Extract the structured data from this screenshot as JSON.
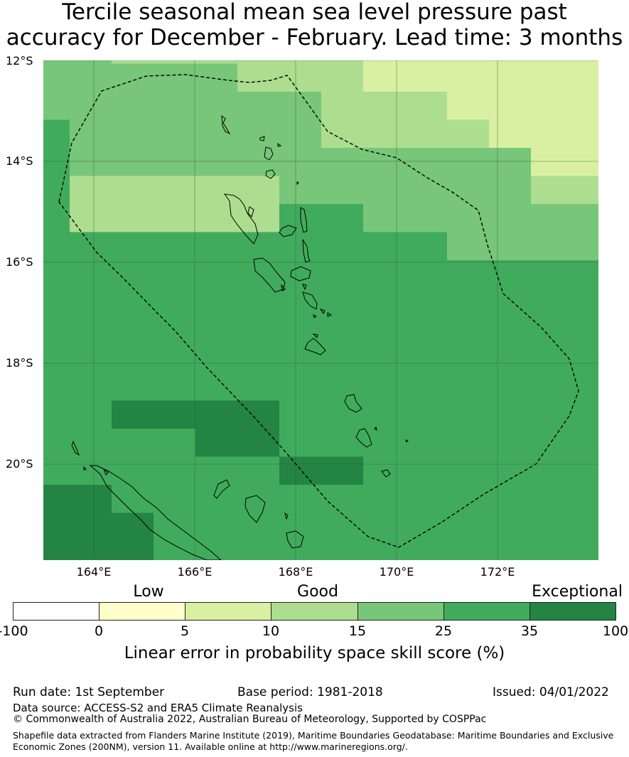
{
  "title_line1": "Tercile seasonal mean sea level pressure past",
  "title_line2": "accuracy for December - February. Lead time: 3 months",
  "map": {
    "lat_labels": [
      "12°S",
      "14°S",
      "16°S",
      "18°S",
      "20°S"
    ],
    "lon_labels": [
      "164°E",
      "166°E",
      "168°E",
      "170°E",
      "172°E"
    ],
    "lon_range": [
      163.0,
      174.0
    ],
    "lat_range": [
      -21.9,
      -12.0
    ],
    "palette": [
      "#ffffcc",
      "#d9f0a3",
      "#addd8e",
      "#78c679",
      "#41ab5d",
      "#238443"
    ],
    "grid": [
      [
        3,
        3,
        2,
        2,
        2,
        2,
        2,
        2,
        1,
        1,
        1,
        1,
        1,
        1,
        1,
        2,
        2,
        2,
        2,
        0,
        0
      ],
      [
        3,
        3,
        3,
        3,
        3,
        2,
        2,
        2,
        1,
        1,
        1,
        1,
        1,
        1,
        1,
        1,
        2,
        2,
        2,
        0,
        0
      ],
      [
        3,
        3,
        3,
        3,
        3,
        3,
        3,
        2,
        2,
        2,
        1,
        1,
        1,
        1,
        1,
        1,
        1,
        1,
        1,
        1,
        3
      ],
      [
        4,
        3,
        3,
        3,
        3,
        3,
        3,
        2,
        2,
        2,
        2,
        1,
        1,
        1,
        1,
        1,
        1,
        1,
        1,
        1,
        1
      ],
      [
        4,
        3,
        3,
        3,
        3,
        3,
        3,
        3,
        3,
        3,
        3,
        3,
        1,
        1,
        1,
        2,
        2,
        2,
        2,
        2,
        1
      ],
      [
        4,
        2,
        2,
        2,
        2,
        2,
        3,
        3,
        3,
        3,
        3,
        3,
        2,
        2,
        3,
        2,
        2,
        2,
        2,
        2,
        2
      ],
      [
        4,
        2,
        2,
        2,
        2,
        2,
        4,
        4,
        3,
        3,
        3,
        3,
        3,
        3,
        3,
        2,
        2,
        2,
        2,
        2,
        2
      ],
      [
        4,
        4,
        4,
        4,
        4,
        4,
        4,
        4,
        4,
        4,
        3,
        3,
        3,
        3,
        3,
        3,
        3,
        2,
        2,
        2,
        2
      ],
      [
        4,
        4,
        4,
        4,
        4,
        4,
        4,
        4,
        4,
        4,
        4,
        4,
        4,
        4,
        4,
        3,
        3,
        3,
        3,
        3,
        2
      ],
      [
        4,
        4,
        4,
        4,
        4,
        4,
        4,
        4,
        4,
        4,
        4,
        4,
        4,
        4,
        4,
        4,
        4,
        3,
        3,
        3,
        3
      ],
      [
        4,
        4,
        4,
        4,
        4,
        4,
        4,
        4,
        4,
        4,
        4,
        4,
        4,
        4,
        4,
        4,
        4,
        4,
        3,
        3,
        3
      ],
      [
        4,
        4,
        4,
        4,
        4,
        4,
        4,
        4,
        4,
        4,
        4,
        4,
        4,
        4,
        4,
        4,
        4,
        4,
        4,
        3,
        3
      ],
      [
        4,
        4,
        4,
        4,
        4,
        4,
        4,
        4,
        4,
        4,
        4,
        4,
        4,
        4,
        4,
        4,
        4,
        4,
        4,
        3,
        3
      ],
      [
        4,
        4,
        5,
        5,
        5,
        5,
        4,
        4,
        4,
        4,
        4,
        4,
        4,
        4,
        4,
        4,
        4,
        4,
        4,
        4,
        3
      ],
      [
        4,
        4,
        4,
        4,
        5,
        5,
        4,
        4,
        4,
        4,
        4,
        4,
        4,
        4,
        4,
        4,
        4,
        4,
        4,
        4,
        3
      ],
      [
        4,
        4,
        4,
        4,
        4,
        4,
        5,
        5,
        4,
        4,
        4,
        4,
        4,
        4,
        4,
        4,
        4,
        4,
        4,
        4,
        3
      ],
      [
        5,
        5,
        4,
        4,
        4,
        4,
        4,
        4,
        4,
        4,
        4,
        4,
        4,
        4,
        4,
        4,
        4,
        4,
        4,
        4,
        3
      ],
      [
        5,
        5,
        5,
        4,
        4,
        4,
        4,
        4,
        4,
        4,
        4,
        4,
        4,
        4,
        4,
        4,
        4,
        3,
        3,
        3,
        3
      ],
      [
        5,
        5,
        5,
        4,
        4,
        4,
        4,
        4,
        4,
        4,
        4,
        4,
        4,
        4,
        4,
        4,
        4,
        3,
        3,
        3,
        3
      ]
    ]
  },
  "categories": [
    "Low",
    "Good",
    "Exceptional"
  ],
  "colorbar": {
    "colors": [
      "#ffffff",
      "#ffffcc",
      "#d9f0a3",
      "#addd8e",
      "#78c679",
      "#41ab5d",
      "#238443"
    ],
    "ticks": [
      "-100",
      "0",
      "5",
      "10",
      "15",
      "25",
      "35",
      "100"
    ],
    "title": "Linear error in probability space skill score (%)"
  },
  "footer": {
    "run_date": "Run date: 1st September",
    "base_period": "Base period: 1981-2018",
    "issued": "Issued: 04/01/2022",
    "data_source": "Data source: ACCESS-S2 and ERA5 Climate Reanalysis",
    "copyright": "© Commonwealth of Australia 2022, Australian Bureau of Meteorology, Supported by COSPPac",
    "shapefile_line1": "Shapefile data extracted from Flanders Marine Institute (2019), Maritime Boundaries Geodatabase: Maritime Boundaries and Exclusive",
    "shapefile_line2": "Economic Zones (200NM), version 11. Available online at http://www.marineregions.org/."
  }
}
